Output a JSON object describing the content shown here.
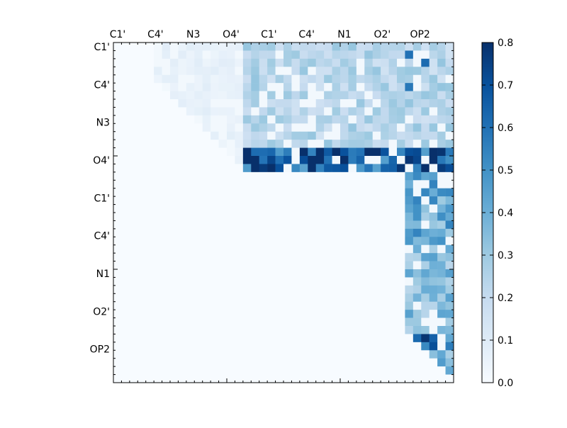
{
  "chart_data": {
    "type": "heatmap",
    "title": "",
    "xlabel": "",
    "ylabel": "",
    "labels": [
      "C1'",
      "C4'",
      "N3",
      "O4'",
      "C1'",
      "C4'",
      "N1",
      "O2'",
      "OP2"
    ],
    "x_tick_labels": [
      "C1'",
      "C4'",
      "N3",
      "O4'",
      "C1'",
      "C4'",
      "N1",
      "O2'",
      "OP2"
    ],
    "y_tick_labels": [
      "C1'",
      "C4'",
      "N3",
      "O4'",
      "C1'",
      "C4'",
      "N1",
      "O2'",
      "OP2"
    ],
    "x_tick_position": "top",
    "grid_size": 42,
    "triangle": "upper",
    "colormap": "Blues",
    "colormap_stops": [
      "#f7fbff",
      "#deebf7",
      "#c6dbef",
      "#9ecae1",
      "#6baed6",
      "#4292c6",
      "#2171b5",
      "#08519c",
      "#08306b"
    ],
    "vmin": 0.0,
    "vmax": 0.8,
    "colorbar": {
      "position": "right",
      "ticks": [
        0.0,
        0.1,
        0.2,
        0.3,
        0.4,
        0.5,
        0.6,
        0.7,
        0.8
      ],
      "tick_labels": [
        "0.0",
        "0.1",
        "0.2",
        "0.3",
        "0.4",
        "0.5",
        "0.6",
        "0.7",
        "0.8"
      ]
    },
    "bands": [
      {
        "rows": [
          0,
          15
        ],
        "cols": [
          16,
          41
        ],
        "level": 0.22
      },
      {
        "rows": [
          13,
          15
        ],
        "cols": [
          16,
          41
        ],
        "level": 0.62
      },
      {
        "rows": [
          16,
          41
        ],
        "cols": [
          36,
          41
        ],
        "level": 0.3
      },
      {
        "rows": [
          16,
          24
        ],
        "cols": [
          36,
          41
        ],
        "level": 0.38
      },
      {
        "rows": [
          0,
          14
        ],
        "cols": [
          5,
          16
        ],
        "level": 0.06
      },
      {
        "rows": [
          15,
          41
        ],
        "cols": [
          36,
          41
        ],
        "level": 0.32
      },
      {
        "rows": [
          36,
          37
        ],
        "cols": [
          36,
          41
        ],
        "level": 0.55
      }
    ],
    "hot_cells": [
      {
        "row": 13,
        "col": 27,
        "value": 0.8
      },
      {
        "row": 13,
        "col": 37,
        "value": 0.72
      },
      {
        "row": 36,
        "col": 39,
        "value": 0.65
      },
      {
        "row": 1,
        "col": 36,
        "value": 0.6
      },
      {
        "row": 2,
        "col": 38,
        "value": 0.62
      },
      {
        "row": 5,
        "col": 36,
        "value": 0.58
      },
      {
        "row": 14,
        "col": 20,
        "value": 0.6
      },
      {
        "row": 15,
        "col": 25,
        "value": 0.55
      }
    ]
  }
}
